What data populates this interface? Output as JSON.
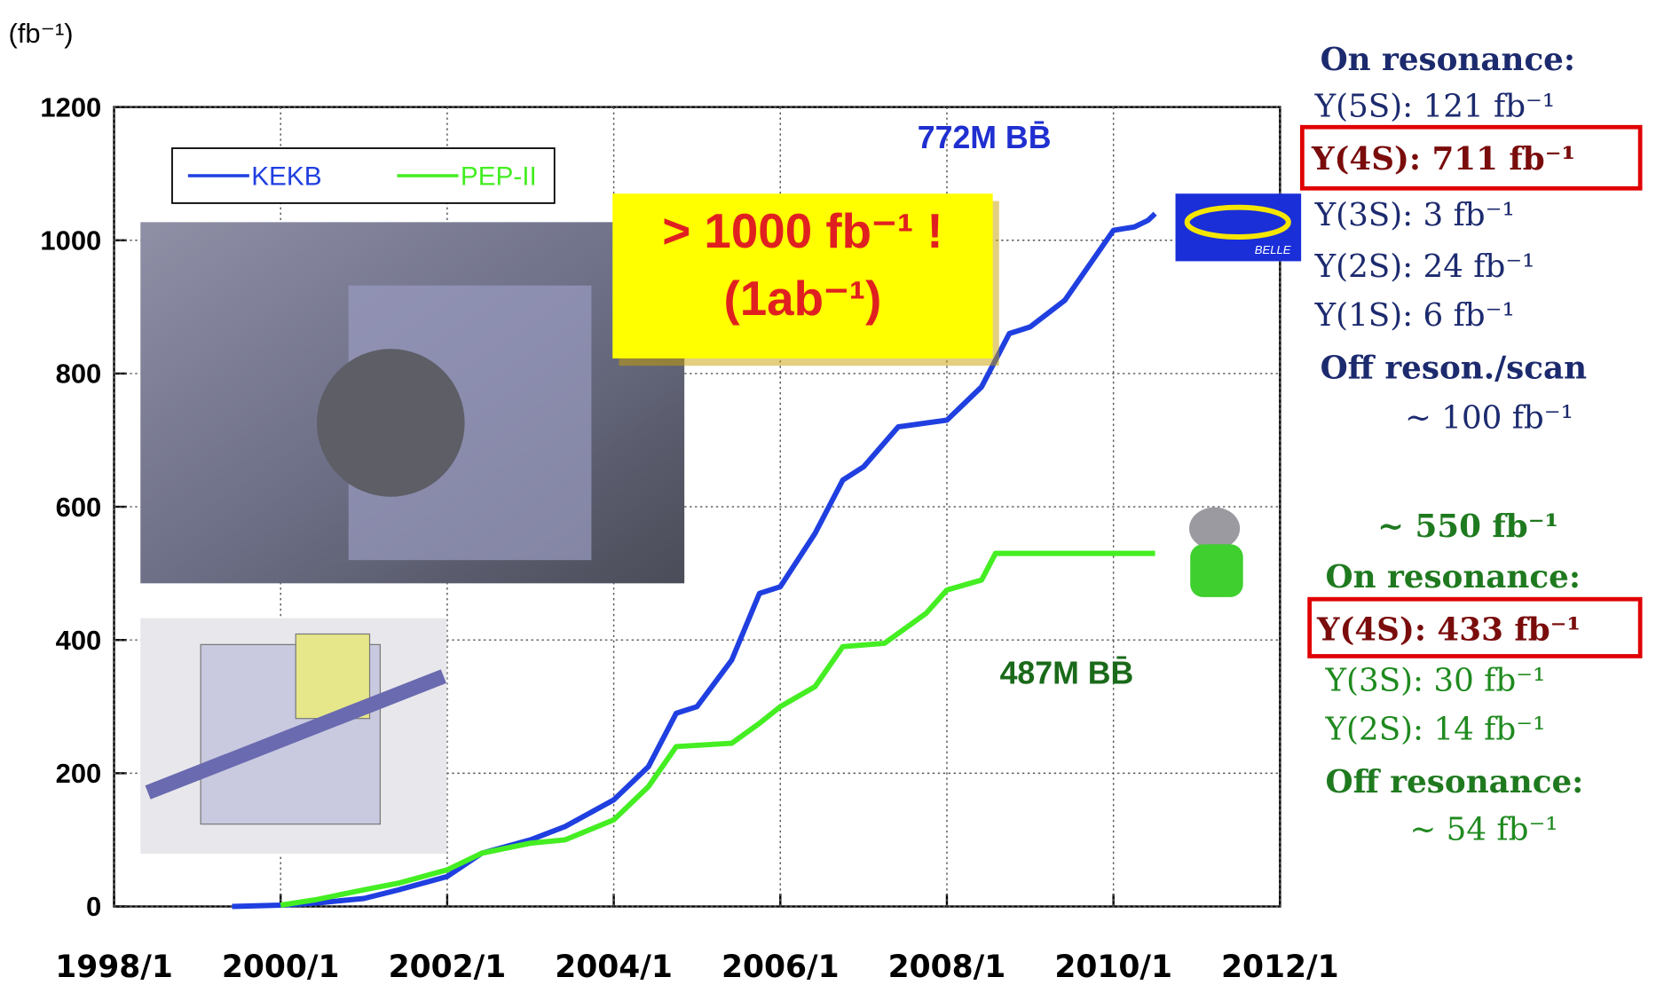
{
  "chart_data": {
    "type": "line",
    "y_label": "(fb⁻¹)",
    "xlim": [
      "1998/1",
      "2012/1"
    ],
    "xticks": [
      "1998/1",
      "2000/1",
      "2002/1",
      "2004/1",
      "2006/1",
      "2008/1",
      "2010/1",
      "2012/1"
    ],
    "ylim": [
      0,
      1200
    ],
    "yticks": [
      0,
      200,
      400,
      600,
      800,
      1000,
      1200
    ],
    "grid": true,
    "legend": "upper left",
    "series": [
      {
        "name": "KEKB",
        "color": "#1f3fe0",
        "x": [
          "1999/6",
          "2000/1",
          "2000/6",
          "2001/1",
          "2001/6",
          "2002/1",
          "2002/6",
          "2003/1",
          "2003/6",
          "2004/1",
          "2004/6",
          "2004/10",
          "2005/1",
          "2005/6",
          "2005/10",
          "2006/1",
          "2006/6",
          "2006/10",
          "2007/1",
          "2007/6",
          "2008/1",
          "2008/6",
          "2008/10",
          "2009/1",
          "2009/6",
          "2009/10",
          "2010/1",
          "2010/4",
          "2010/6",
          "2010/7"
        ],
        "values": [
          0,
          2,
          5,
          12,
          25,
          45,
          80,
          100,
          120,
          160,
          210,
          290,
          300,
          370,
          470,
          480,
          560,
          640,
          660,
          720,
          730,
          780,
          860,
          870,
          910,
          970,
          1015,
          1020,
          1030,
          1040
        ]
      },
      {
        "name": "PEP-II",
        "color": "#44ee22",
        "x": [
          "2000/1",
          "2000/6",
          "2001/1",
          "2001/6",
          "2002/1",
          "2002/6",
          "2003/1",
          "2003/6",
          "2004/1",
          "2004/6",
          "2004/10",
          "2005/6",
          "2005/10",
          "2006/1",
          "2006/6",
          "2006/10",
          "2007/4",
          "2007/10",
          "2008/1",
          "2008/6",
          "2008/8",
          "2010/7"
        ],
        "values": [
          2,
          10,
          25,
          35,
          55,
          80,
          95,
          100,
          130,
          180,
          240,
          245,
          275,
          300,
          330,
          390,
          395,
          440,
          475,
          490,
          530,
          530
        ]
      }
    ],
    "annotations": [
      "> 1000 fb⁻¹ !",
      "(1ab⁻¹)",
      "772M BB̄",
      "487M BB̄"
    ],
    "logo_text": "BELLE",
    "belle_summary": [
      "On resonance:",
      "Υ(5S): 121 fb⁻¹",
      "Υ(4S): 711 fb⁻¹",
      "Υ(3S): 3 fb⁻¹",
      "Υ(2S): 24 fb⁻¹",
      "Υ(1S): 6 fb⁻¹",
      "Off reson./scan",
      "~ 100 fb⁻¹"
    ],
    "babar_total": "~ 550 fb⁻¹",
    "babar_summary": [
      "On resonance:",
      "Υ(4S): 433 fb⁻¹",
      "Υ(3S): 30 fb⁻¹",
      "Υ(2S): 14 fb⁻¹",
      "Off resonance:",
      "~ 54 fb⁻¹"
    ]
  }
}
